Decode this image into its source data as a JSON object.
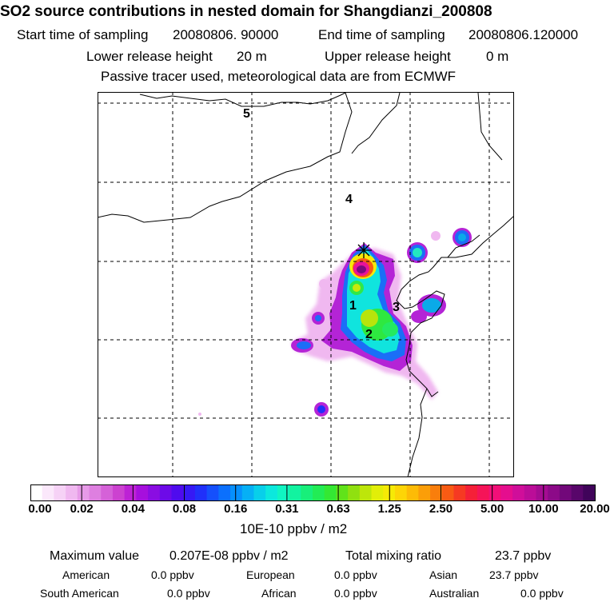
{
  "header": {
    "title": "SO2 source contributions in nested domain for Shangdianzi_200808",
    "start_label": "Start time of sampling",
    "start_value": "20080806. 90000",
    "end_label": "End time of sampling",
    "end_value": "20080806.120000",
    "lower_label": "Lower release height",
    "lower_value": "20 m",
    "upper_label": "Upper release height",
    "upper_value": "0 m",
    "note": "Passive tracer used, meteorological data are from ECMWF"
  },
  "map": {
    "region_labels": [
      "1",
      "2",
      "3",
      "4",
      "5"
    ],
    "receptor_marker": "x-star-icon"
  },
  "colorbar": {
    "labels": [
      "0.00",
      "0.02",
      "0.04",
      "0.08",
      "0.16",
      "0.31",
      "0.63",
      "1.25",
      "2.50",
      "5.00",
      "10.00",
      "20.00"
    ],
    "unit": "10E-10 ppbv / m2",
    "colors": [
      "#ffffff",
      "#fbe8fb",
      "#f6d2f6",
      "#f0b8f0",
      "#e79ae8",
      "#de7fe0",
      "#d561d8",
      "#cc42d0",
      "#bd22d5",
      "#a60fdd",
      "#8a0de2",
      "#6d0ae8",
      "#4f0bee",
      "#3619f5",
      "#2030fa",
      "#1550fc",
      "#0b70fd",
      "#0690fd",
      "#06b0f5",
      "#08cfea",
      "#0ce8dd",
      "#10f5c2",
      "#12f3a0",
      "#18ef7a",
      "#22ec55",
      "#34e833",
      "#60e31a",
      "#90e010",
      "#bde60a",
      "#e2ee08",
      "#f6ea06",
      "#fdd506",
      "#fdbb06",
      "#fb9e08",
      "#f97e0c",
      "#f85b14",
      "#f63a22",
      "#f52038",
      "#f51458",
      "#f20f78",
      "#e50e8e",
      "#d00e9a",
      "#bb0d98",
      "#a50c92",
      "#8c0a88",
      "#72087a",
      "#58066a",
      "#40045a"
    ]
  },
  "footer": {
    "max_label": "Maximum value",
    "max_value": "0.207E-08 ppbv / m2",
    "total_label": "Total mixing ratio",
    "total_value": "23.7 ppbv",
    "american_label": "American",
    "american_value": "0.0 ppbv",
    "european_label": "European",
    "european_value": "0.0 ppbv",
    "asian_label": "Asian",
    "asian_value": "23.7 ppbv",
    "south_american_label": "South American",
    "south_american_value": "0.0 ppbv",
    "african_label": "African",
    "african_value": "0.0 ppbv",
    "australian_label": "Australian",
    "australian_value": "0.0 ppbv"
  }
}
